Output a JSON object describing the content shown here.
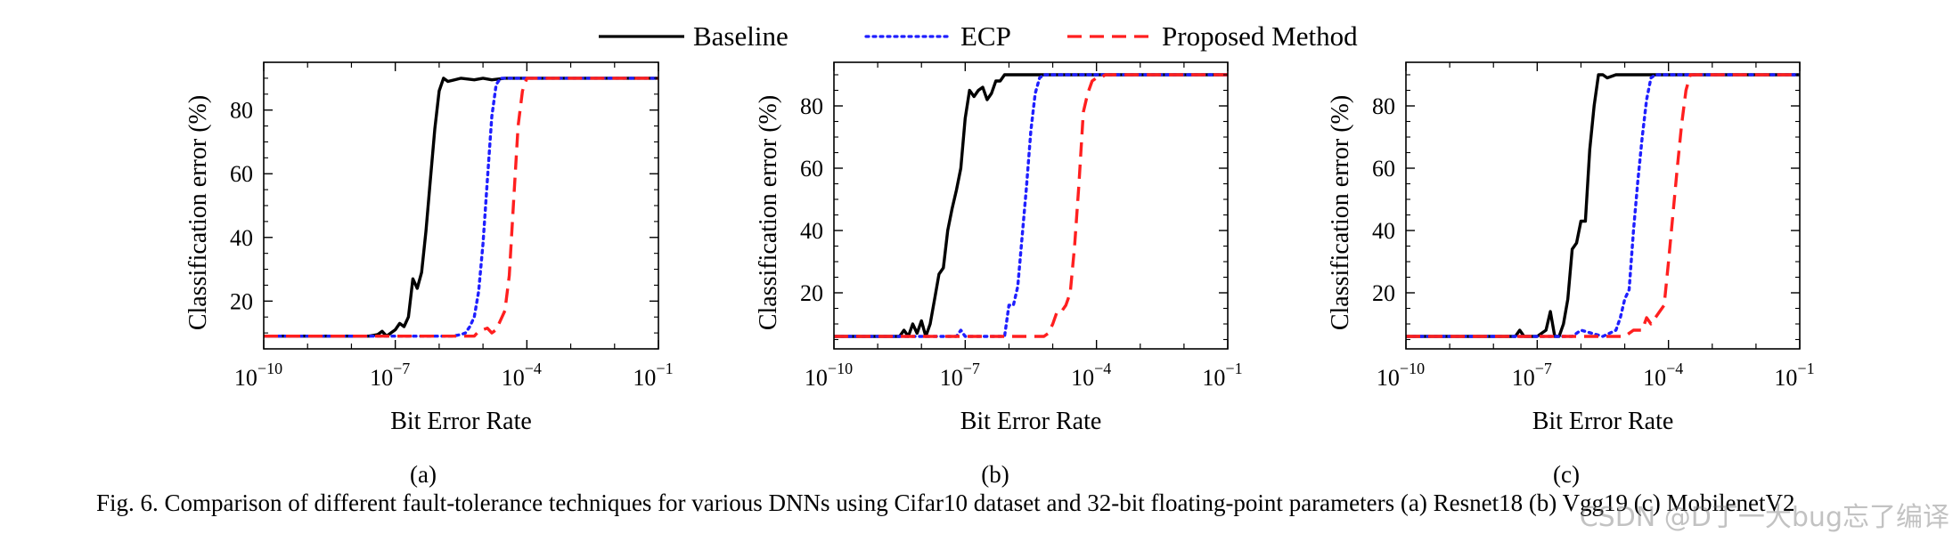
{
  "legend": [
    {
      "name": "Baseline",
      "color": "#000000",
      "dash": "solid"
    },
    {
      "name": "ECP",
      "color": "#1f1fff",
      "dash": "dotted"
    },
    {
      "name": "Proposed Method",
      "color": "#ff1f1f",
      "dash": "dashed"
    }
  ],
  "chart_data": [
    {
      "type": "line",
      "label": "(a)",
      "xlabel": "Bit Error Rate",
      "ylabel": "Classification error (%)",
      "xscale": "log",
      "xlim_exp": [
        -10,
        -1
      ],
      "ylim": [
        5,
        95
      ],
      "xticks": [
        {
          "base": "10",
          "exp": "−10"
        },
        {
          "base": "10",
          "exp": "−7"
        },
        {
          "base": "10",
          "exp": "−4"
        },
        {
          "base": "10",
          "exp": "−1"
        }
      ],
      "yticks": [
        20,
        40,
        60,
        80
      ],
      "series": [
        {
          "name": "Baseline",
          "x_exp": [
            -10,
            -7.6,
            -7.4,
            -7.3,
            -7.2,
            -7.1,
            -7,
            -6.9,
            -6.8,
            -6.7,
            -6.6,
            -6.5,
            -6.4,
            -6.3,
            -6.2,
            -6.1,
            -6,
            -5.9,
            -5.8,
            -5.5,
            -5.2,
            -5,
            -4.8,
            -4.5,
            -4,
            -1
          ],
          "y": [
            9,
            9,
            9.5,
            10.5,
            9,
            10,
            11,
            13,
            12,
            15,
            27,
            24,
            29,
            42,
            58,
            74,
            86,
            90,
            89,
            90,
            89.5,
            90,
            89.5,
            90,
            90,
            90
          ]
        },
        {
          "name": "ECP",
          "x_exp": [
            -10,
            -5.7,
            -5.5,
            -5.4,
            -5.3,
            -5.2,
            -5.1,
            -5,
            -4.9,
            -4.8,
            -4.7,
            -4.6,
            -4.5,
            -4.2,
            -1
          ],
          "y": [
            9,
            9,
            9.5,
            10,
            12,
            15,
            23,
            38,
            58,
            78,
            88,
            90,
            90,
            90,
            90
          ]
        },
        {
          "name": "Proposed Method",
          "x_exp": [
            -10,
            -5.2,
            -5.1,
            -5,
            -4.9,
            -4.8,
            -4.7,
            -4.6,
            -4.5,
            -4.4,
            -4.3,
            -4.2,
            -4.1,
            -4,
            -3.9,
            -3.8,
            -3.5,
            -1
          ],
          "y": [
            9,
            9,
            10.5,
            11,
            11.5,
            10,
            11,
            14,
            17,
            28,
            52,
            75,
            86,
            90,
            90,
            90,
            90,
            90
          ]
        }
      ]
    },
    {
      "type": "line",
      "label": "(b)",
      "xlabel": "Bit Error Rate",
      "ylabel": "Classification error (%)",
      "xscale": "log",
      "xlim_exp": [
        -10,
        -1
      ],
      "ylim": [
        2,
        94
      ],
      "xticks": [
        {
          "base": "10",
          "exp": "−10"
        },
        {
          "base": "10",
          "exp": "−7"
        },
        {
          "base": "10",
          "exp": "−4"
        },
        {
          "base": "10",
          "exp": "−1"
        }
      ],
      "yticks": [
        20,
        40,
        60,
        80
      ],
      "series": [
        {
          "name": "Baseline",
          "x_exp": [
            -10,
            -8.5,
            -8.4,
            -8.3,
            -8.2,
            -8.1,
            -8,
            -7.9,
            -7.8,
            -7.7,
            -7.6,
            -7.5,
            -7.4,
            -7.3,
            -7.2,
            -7.1,
            -7,
            -6.9,
            -6.8,
            -6.7,
            -6.6,
            -6.5,
            -6.4,
            -6.3,
            -6.2,
            -6.1,
            -6,
            -5.8,
            -5.5,
            -5,
            -4.5,
            -4,
            -1
          ],
          "y": [
            6,
            6,
            8,
            6,
            10,
            7,
            11,
            6,
            10,
            18,
            26,
            28,
            40,
            47,
            53,
            60,
            76,
            85,
            83,
            85,
            86,
            82,
            84,
            88,
            88,
            90,
            90,
            90,
            90,
            90,
            90,
            90,
            90
          ]
        },
        {
          "name": "ECP",
          "x_exp": [
            -10,
            -7.2,
            -7.1,
            -7,
            -6.5,
            -6.1,
            -6,
            -5.9,
            -5.8,
            -5.7,
            -5.6,
            -5.5,
            -5.4,
            -5.3,
            -5.2,
            -5.1,
            -5,
            -4.8,
            -4.5,
            -1
          ],
          "y": [
            6,
            6,
            8,
            6,
            6,
            6,
            16,
            16,
            22,
            38,
            54,
            72,
            84,
            89,
            90,
            90,
            90,
            90,
            90,
            90
          ]
        },
        {
          "name": "Proposed Method",
          "x_exp": [
            -10,
            -5.2,
            -5.1,
            -5,
            -4.9,
            -4.8,
            -4.7,
            -4.6,
            -4.5,
            -4.4,
            -4.3,
            -4.2,
            -4.1,
            -4,
            -3.9,
            -3.8,
            -3.6,
            -3.3,
            -3,
            -1
          ],
          "y": [
            6,
            6,
            7,
            10,
            14,
            14,
            16,
            20,
            35,
            55,
            78,
            84,
            88,
            89,
            89,
            90,
            90,
            90,
            90,
            90
          ]
        }
      ]
    },
    {
      "type": "line",
      "label": "(c)",
      "xlabel": "Bit Error Rate",
      "ylabel": "Classification error (%)",
      "xscale": "log",
      "xlim_exp": [
        -10,
        -1
      ],
      "ylim": [
        2,
        94
      ],
      "xticks": [
        {
          "base": "10",
          "exp": "−10"
        },
        {
          "base": "10",
          "exp": "−7"
        },
        {
          "base": "10",
          "exp": "−4"
        },
        {
          "base": "10",
          "exp": "−1"
        }
      ],
      "yticks": [
        20,
        40,
        60,
        80
      ],
      "series": [
        {
          "name": "Baseline",
          "x_exp": [
            -10,
            -7.5,
            -7.4,
            -7.3,
            -7,
            -6.8,
            -6.7,
            -6.6,
            -6.5,
            -6.4,
            -6.3,
            -6.2,
            -6.1,
            -6,
            -5.9,
            -5.8,
            -5.7,
            -5.6,
            -5.5,
            -5.4,
            -5.2,
            -5,
            -4.5,
            -4,
            -1
          ],
          "y": [
            6,
            6,
            8,
            6,
            6,
            8,
            14,
            6,
            6,
            10,
            18,
            34,
            36,
            43,
            43,
            66,
            80,
            90,
            90,
            89,
            90,
            90,
            90,
            90,
            90
          ]
        },
        {
          "name": "ECP",
          "x_exp": [
            -10,
            -6.2,
            -6,
            -5.5,
            -5.2,
            -5.1,
            -5,
            -4.9,
            -4.8,
            -4.7,
            -4.6,
            -4.5,
            -4.4,
            -4.3,
            -4.2,
            -4,
            -1
          ],
          "y": [
            6,
            6,
            8,
            6,
            8,
            12,
            18,
            21,
            40,
            56,
            70,
            82,
            89,
            90,
            90,
            90,
            90
          ]
        },
        {
          "name": "Proposed Method",
          "x_exp": [
            -10,
            -5,
            -4.8,
            -4.6,
            -4.5,
            -4.4,
            -4.3,
            -4.2,
            -4.1,
            -4,
            -3.9,
            -3.8,
            -3.7,
            -3.6,
            -3.5,
            -3.4,
            -3.2,
            -3,
            -1
          ],
          "y": [
            6,
            6,
            8,
            8,
            12,
            10,
            12,
            14,
            16,
            30,
            45,
            60,
            74,
            85,
            90,
            90,
            90,
            90,
            90
          ]
        }
      ]
    }
  ],
  "caption": "Fig. 6.  Comparison of different fault-tolerance techniques for various DNNs using Cifar10 dataset and 32-bit floating-point parameters (a) Resnet18 (b) Vgg19 (c) MobilenetV2",
  "watermark": "CSDN @D丁一大bug忘了编译"
}
